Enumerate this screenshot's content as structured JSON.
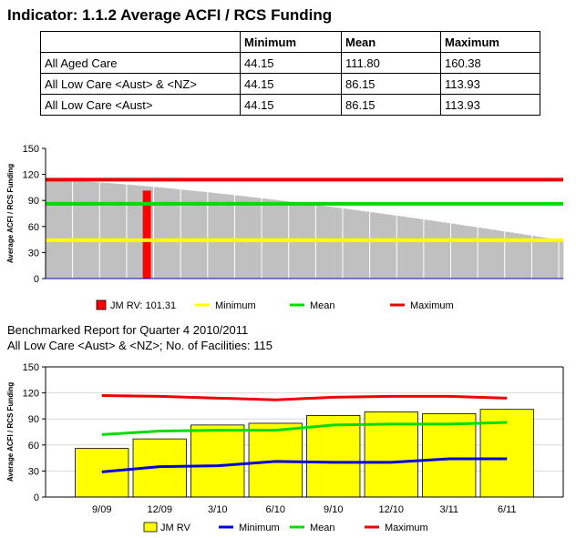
{
  "page": {
    "title": "Indicator: 1.1.2  Average ACFI / RCS Funding",
    "subtitle_line1": "Benchmarked Report for Quarter 4 2010/2011",
    "subtitle_line2": "All Low Care <Aust> & <NZ>; No. of Facilities:  115"
  },
  "summary_table": {
    "headers": [
      "",
      "Minimum",
      "Mean",
      "Maximum"
    ],
    "rows": [
      [
        "All Aged Care",
        "44.15",
        "111.80",
        "160.38"
      ],
      [
        "All Low Care <Aust> & <NZ>",
        "44.15",
        "86.15",
        "113.93"
      ],
      [
        "All Low Care <Aust>",
        "44.15",
        "86.15",
        "113.93"
      ]
    ]
  },
  "chart_data": [
    {
      "type": "bar",
      "ylabel": "Average ACFI / RCS Funding",
      "ylim": [
        0,
        150
      ],
      "yticks": [
        0,
        30,
        60,
        90,
        120,
        150
      ],
      "n_facilities": 115,
      "facility_values_start": 113.93,
      "facility_values_end": 44.15,
      "highlight_index": 22,
      "highlight_value": 101.31,
      "reference_lines": [
        {
          "name": "Minimum",
          "value": 44.15,
          "color": "#ffff00"
        },
        {
          "name": "Mean",
          "value": 86.15,
          "color": "#00dd00"
        },
        {
          "name": "Maximum",
          "value": 113.93,
          "color": "#ee0000"
        }
      ],
      "bar_color": "#c0c0c0",
      "highlight_color": "#ff0000",
      "legend": {
        "placement": "bottom",
        "items": [
          {
            "label": "JM RV:  101.31",
            "kind": "box",
            "color": "#ff0000"
          },
          {
            "label": "Minimum",
            "kind": "line",
            "color": "#ffff00"
          },
          {
            "label": "Mean",
            "kind": "line",
            "color": "#00dd00"
          },
          {
            "label": "Maximum",
            "kind": "line",
            "color": "#ee0000"
          }
        ]
      }
    },
    {
      "type": "bar",
      "ylabel": "Average ACFI / RCS Funding",
      "ylim": [
        0,
        150
      ],
      "yticks": [
        0,
        30,
        60,
        90,
        120,
        150
      ],
      "categories": [
        "9/09",
        "12/09",
        "3/10",
        "6/10",
        "9/10",
        "12/10",
        "3/11",
        "6/11"
      ],
      "bar_color": "#ffff00",
      "series": [
        {
          "name": "JM RV",
          "kind": "bar",
          "color": "#ffff00",
          "values": [
            56,
            67,
            83,
            85,
            94,
            98,
            96,
            101
          ]
        },
        {
          "name": "Minimum",
          "kind": "line",
          "color": "#0000dd",
          "values": [
            29,
            35,
            36,
            41,
            40,
            40,
            44,
            44
          ]
        },
        {
          "name": "Mean",
          "kind": "line",
          "color": "#00dd00",
          "values": [
            72,
            76,
            77,
            77,
            83,
            84,
            84,
            86
          ]
        },
        {
          "name": "Maximum",
          "kind": "line",
          "color": "#ee0000",
          "values": [
            117,
            116,
            114,
            112,
            115,
            116,
            116,
            114
          ]
        }
      ],
      "legend": {
        "placement": "bottom"
      }
    }
  ]
}
